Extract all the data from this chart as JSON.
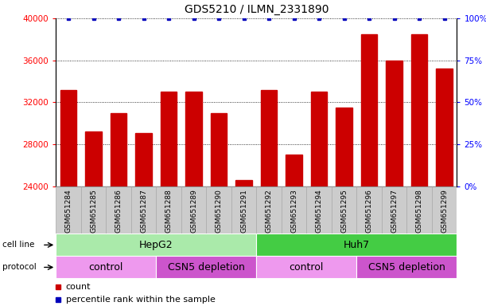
{
  "title": "GDS5210 / ILMN_2331890",
  "samples": [
    "GSM651284",
    "GSM651285",
    "GSM651286",
    "GSM651287",
    "GSM651288",
    "GSM651289",
    "GSM651290",
    "GSM651291",
    "GSM651292",
    "GSM651293",
    "GSM651294",
    "GSM651295",
    "GSM651296",
    "GSM651297",
    "GSM651298",
    "GSM651299"
  ],
  "counts": [
    33200,
    29200,
    31000,
    29100,
    33000,
    33000,
    31000,
    24600,
    33200,
    27000,
    33000,
    31500,
    38500,
    36000,
    38500,
    35200
  ],
  "bar_color": "#cc0000",
  "dot_color": "#0000bb",
  "ylim_left": [
    24000,
    40000
  ],
  "ylim_right": [
    0,
    100
  ],
  "yticks_left": [
    24000,
    28000,
    32000,
    36000,
    40000
  ],
  "yticks_right": [
    0,
    25,
    50,
    75,
    100
  ],
  "cell_line_labels": [
    {
      "label": "HepG2",
      "start": 0,
      "end": 8,
      "color": "#aaeaaa"
    },
    {
      "label": "Huh7",
      "start": 8,
      "end": 16,
      "color": "#44cc44"
    }
  ],
  "protocol_labels": [
    {
      "label": "control",
      "start": 0,
      "end": 4,
      "color": "#ee99ee"
    },
    {
      "label": "CSN5 depletion",
      "start": 4,
      "end": 8,
      "color": "#cc55cc"
    },
    {
      "label": "control",
      "start": 8,
      "end": 12,
      "color": "#ee99ee"
    },
    {
      "label": "CSN5 depletion",
      "start": 12,
      "end": 16,
      "color": "#cc55cc"
    }
  ],
  "legend_count_color": "#cc0000",
  "legend_pct_color": "#0000bb",
  "xnames_bg": "#cccccc",
  "xnames_border": "#aaaaaa"
}
